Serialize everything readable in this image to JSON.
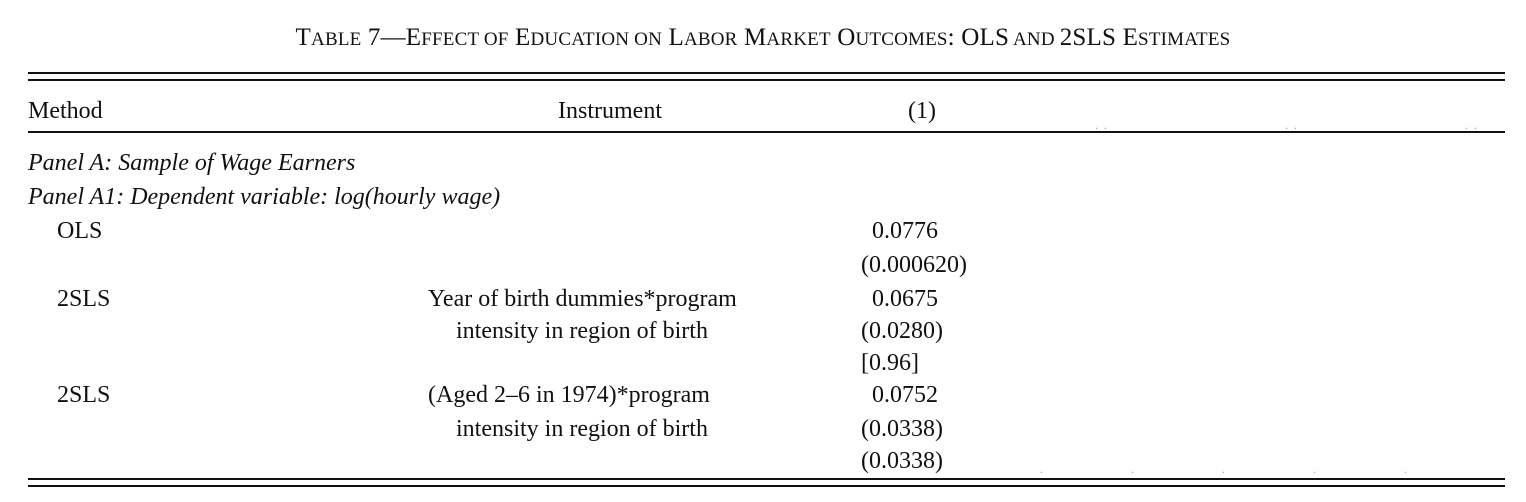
{
  "caption": {
    "prefix": "T",
    "prefix_small": "ABLE",
    "number": " 7—E",
    "w1_small": "FFECT OF",
    "w2_big": " E",
    "w2_small": "DUCATION ON",
    "w3_big": " L",
    "w3_small": "ABOR",
    "w4_big": " M",
    "w4_small": "ARKET",
    "w5_big": " O",
    "w5_small": "UTCOMES",
    "w6_big": ": OLS",
    "w6_small": " AND ",
    "w7_big": "2SLS E",
    "w7_small": "STIMATES"
  },
  "header": {
    "method": "Method",
    "instrument": "Instrument",
    "col1": "(1)"
  },
  "panels": {
    "panel_a": "Panel A: Sample of Wage Earners",
    "panel_a1": "Panel A1: Dependent variable: log(hourly wage)"
  },
  "rows": [
    {
      "method": "OLS",
      "instrument_line1": "",
      "instrument_line2": "",
      "coef": "0.0776",
      "se": "(0.000620)",
      "extra": ""
    },
    {
      "method": "2SLS",
      "instrument_line1": "Year of birth dummies*program",
      "instrument_line2": "intensity in region of birth",
      "coef": "0.0675",
      "se": "(0.0280)",
      "extra": "[0.96]"
    },
    {
      "method": "2SLS",
      "instrument_line1": "(Aged 2–6 in 1974)*program",
      "instrument_line2": "intensity in region of birth",
      "coef": "0.0752",
      "se": "(0.0338)",
      "extra": "(0.0338)"
    }
  ]
}
